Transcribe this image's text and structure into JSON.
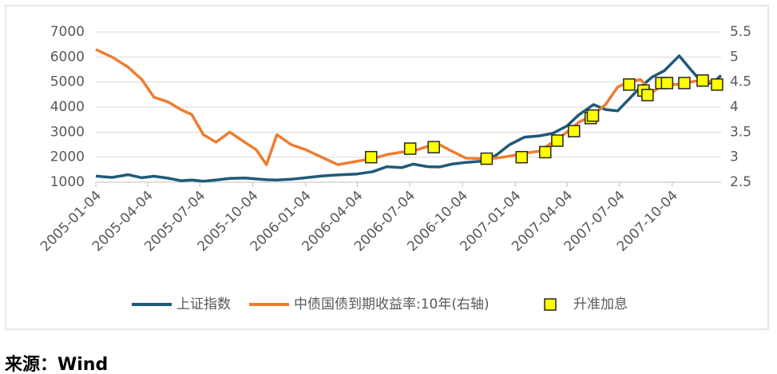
{
  "chart_data": {
    "type": "line",
    "x": [
      "2005-01-04",
      "2005-02-01",
      "2005-03-01",
      "2005-03-25",
      "2005-04-15",
      "2005-05-10",
      "2005-06-01",
      "2005-06-20",
      "2005-07-10",
      "2005-08-01",
      "2005-08-25",
      "2005-09-20",
      "2005-10-10",
      "2005-10-28",
      "2005-11-15",
      "2005-12-10",
      "2006-01-04",
      "2006-02-01",
      "2006-03-01",
      "2006-04-04",
      "2006-05-01",
      "2006-05-25",
      "2006-06-20",
      "2006-07-10",
      "2006-08-05",
      "2006-08-25",
      "2006-09-15",
      "2006-10-10",
      "2006-11-05",
      "2006-12-01",
      "2006-12-25",
      "2007-01-20",
      "2007-02-15",
      "2007-03-10",
      "2007-04-04",
      "2007-04-25",
      "2007-05-20",
      "2007-06-10",
      "2007-07-01",
      "2007-07-20",
      "2007-08-10",
      "2007-08-30",
      "2007-09-20",
      "2007-10-16",
      "2007-11-05",
      "2007-11-28",
      "2007-12-15",
      "2007-12-28"
    ],
    "series": [
      {
        "name": "上证指数",
        "color": "#1f5a78",
        "axis": "y",
        "values": [
          1243,
          1190,
          1300,
          1180,
          1240,
          1160,
          1060,
          1090,
          1040,
          1090,
          1150,
          1170,
          1130,
          1100,
          1090,
          1120,
          1180,
          1250,
          1290,
          1330,
          1420,
          1620,
          1580,
          1720,
          1620,
          1610,
          1720,
          1790,
          1840,
          2070,
          2500,
          2800,
          2850,
          2950,
          3250,
          3700,
          4100,
          3900,
          3850,
          4300,
          4800,
          5200,
          5450,
          6050,
          5500,
          4900,
          5000,
          5260
        ]
      },
      {
        "name": "中债国债到期收益率:10年(右轴)",
        "color": "#ed7d31",
        "axis": "y2",
        "values": [
          5.15,
          5.0,
          4.8,
          4.55,
          4.2,
          4.1,
          3.95,
          3.85,
          3.45,
          3.3,
          3.5,
          3.3,
          3.15,
          2.85,
          3.45,
          3.25,
          3.15,
          3.0,
          2.85,
          2.92,
          2.97,
          3.05,
          3.1,
          3.12,
          3.22,
          3.25,
          3.12,
          2.98,
          2.97,
          2.98,
          3.02,
          3.08,
          3.12,
          3.3,
          3.5,
          3.7,
          3.85,
          4.05,
          4.4,
          4.5,
          4.55,
          4.3,
          4.45,
          4.45,
          4.5,
          4.55,
          4.5,
          4.45
        ]
      },
      {
        "name": "升准加息",
        "type": "scatter",
        "color": "#ffff00",
        "axis": "y2",
        "x": [
          "2006-04-28",
          "2006-07-05",
          "2006-08-15",
          "2006-11-15",
          "2007-01-15",
          "2007-02-25",
          "2007-03-18",
          "2007-04-16",
          "2007-05-15",
          "2007-05-19",
          "2007-07-21",
          "2007-08-15",
          "2007-08-22",
          "2007-09-15",
          "2007-09-25",
          "2007-10-25",
          "2007-11-26",
          "2007-12-21"
        ],
        "values": [
          3.0,
          3.17,
          3.2,
          2.97,
          3.0,
          3.1,
          3.33,
          3.52,
          3.78,
          3.83,
          4.45,
          4.33,
          4.24,
          4.48,
          4.48,
          4.48,
          4.53,
          4.45
        ]
      }
    ],
    "xlim": [
      "2005-01-04",
      "2007-12-28"
    ],
    "xticks": [
      "2005-01-04",
      "2005-04-04",
      "2005-07-04",
      "2005-10-04",
      "2006-01-04",
      "2006-04-04",
      "2006-07-04",
      "2006-10-04",
      "2007-01-04",
      "2007-04-04",
      "2007-07-04",
      "2007-10-04"
    ],
    "ylim": [
      1000,
      7000
    ],
    "yticks": [
      1000,
      2000,
      3000,
      4000,
      5000,
      6000,
      7000
    ],
    "y2lim": [
      2.5,
      5.5
    ],
    "y2ticks": [
      2.5,
      3,
      3.5,
      4,
      4.5,
      5,
      5.5
    ],
    "grid": true,
    "legend": "bottom"
  },
  "source": "来源：Wind"
}
